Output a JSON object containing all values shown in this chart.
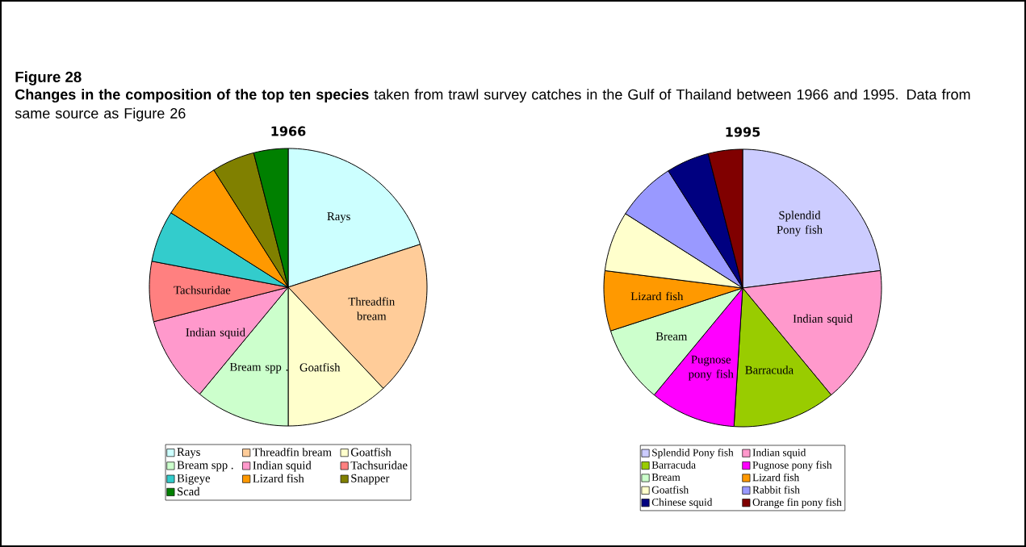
{
  "chart_data": [
    {
      "type": "pie",
      "title": "1966",
      "annotations": [
        "Figure 28",
        "**Changes in the composition of the top ten species** taken from trawl survey catches in the Gulf of Thailand between 1966 and 1995.  Data from same source as Figure 26"
      ],
      "categories": [
        "Rays",
        "Threadfin bream",
        "Goatfish",
        "Bream spp .",
        "Indian squid",
        "Tachsuridae",
        "Bigeye",
        "Lizard fish",
        "Snapper",
        "Scad"
      ],
      "values": [
        20,
        18,
        12,
        11,
        10,
        7,
        6,
        7,
        5,
        4
      ],
      "colors": [
        "#ccffff",
        "#ffcc99",
        "#ffffcc",
        "#ccffcc",
        "#ff99cc",
        "#ff8080",
        "#33cccc",
        "#ff9900",
        "#808000",
        "#008000"
      ],
      "value_labels": [
        "Rays",
        "Threadfin bream",
        "Goatfish",
        "Bream spp .",
        "Indian squid",
        "Tachsuridae",
        null,
        null,
        null,
        null
      ],
      "legend": "bottom"
    },
    {
      "type": "pie",
      "title": "1995",
      "categories": [
        "Splendid Pony fish",
        "Indian squid",
        "Barracuda",
        "Pugnose pony fish",
        "Bream",
        "Lizard fish",
        "Goatfish",
        "Rabbit fish",
        "Chinese squid",
        "Orange fin pony fish"
      ],
      "values": [
        23,
        16,
        12,
        10,
        9,
        7,
        7,
        7,
        5,
        4
      ],
      "colors": [
        "#ccccff",
        "#ff99cc",
        "#99cc00",
        "#ff00ff",
        "#ccffcc",
        "#ff9900",
        "#ffffcc",
        "#9999ff",
        "#000080",
        "#800000"
      ],
      "value_labels": [
        "Splendid Pony fish",
        "Indian squid",
        "Barracuda",
        "Pugnose pony fish",
        "Bream",
        "Lizard fish",
        null,
        null,
        null,
        null
      ],
      "legend": "bottom"
    }
  ]
}
